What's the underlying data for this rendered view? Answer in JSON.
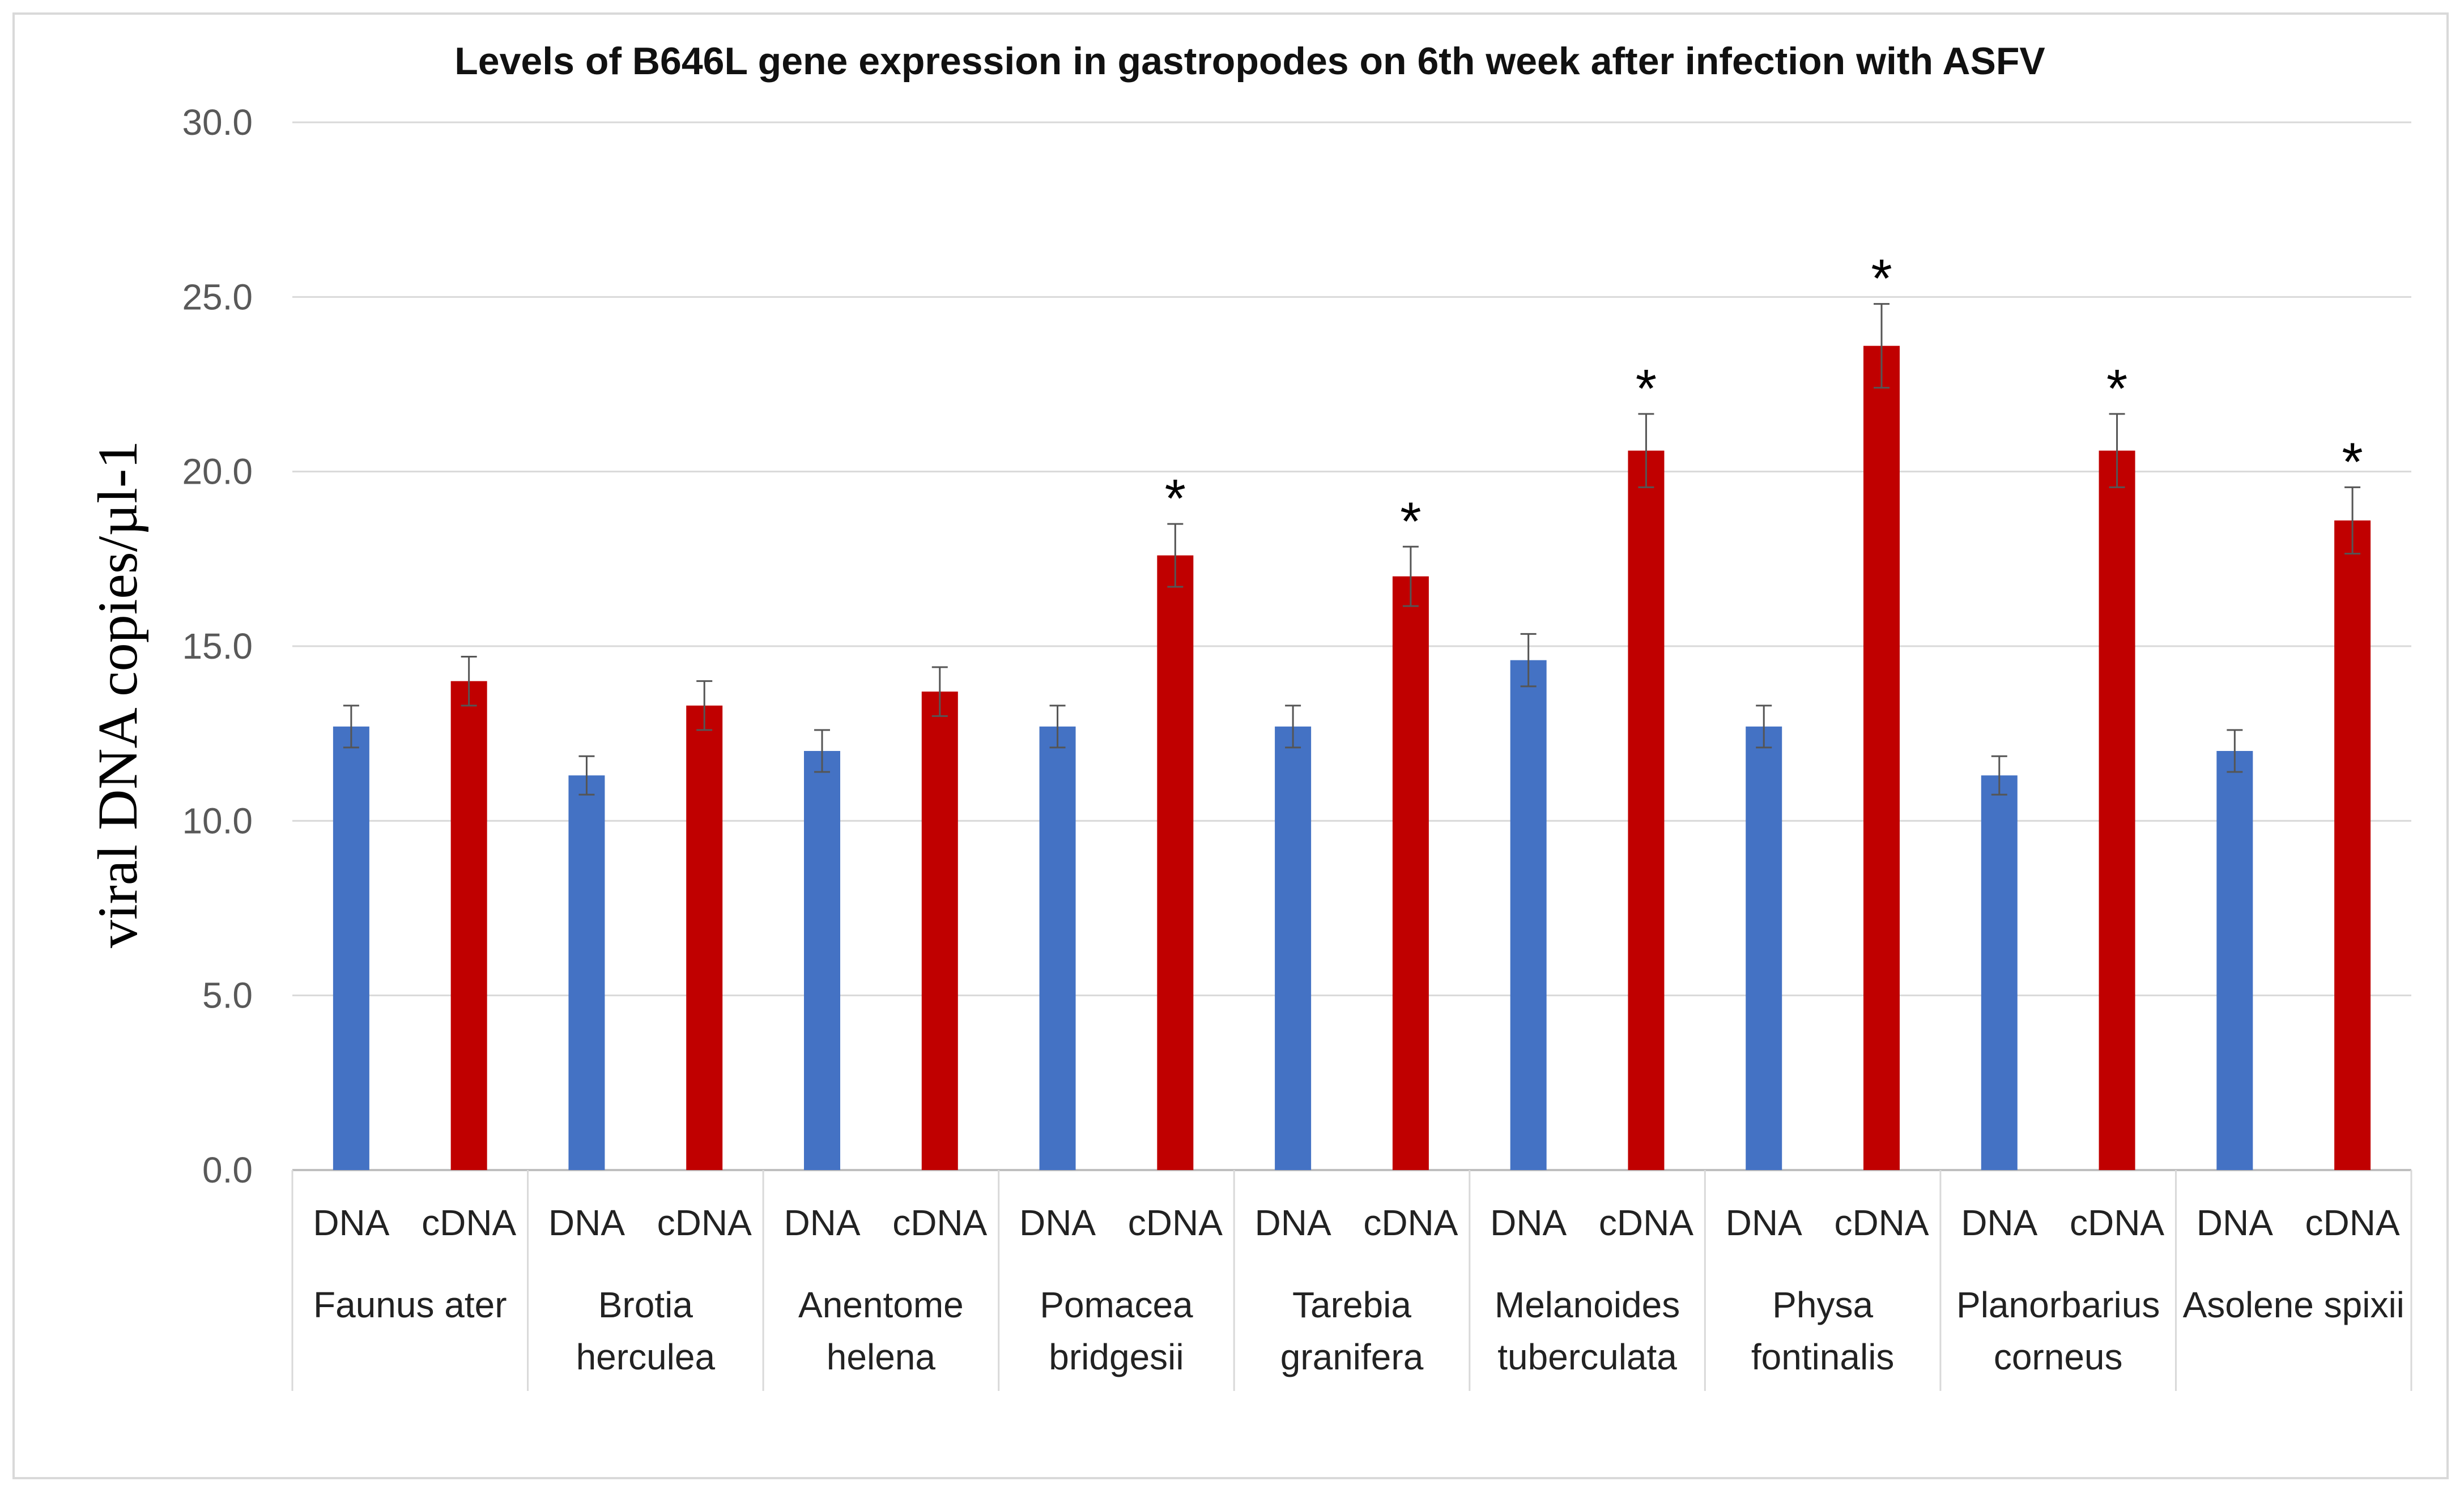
{
  "chart_data": {
    "type": "bar",
    "title": "Levels of B646L gene expression in gastropodes  on 6th week after infection with ASFV",
    "xlabel": "",
    "ylabel": "viral DNA copies/µl-1",
    "ylim": [
      0,
      30
    ],
    "yticks": [
      "0.0",
      "5.0",
      "10.0",
      "15.0",
      "20.0",
      "25.0",
      "30.0"
    ],
    "ytick_values": [
      0,
      5,
      10,
      15,
      20,
      25,
      30
    ],
    "grid": true,
    "significance_marker": "*",
    "series": [
      {
        "name": "DNA",
        "color": "#4472c4"
      },
      {
        "name": "cDNA",
        "color": "#c00000"
      }
    ],
    "groups": [
      {
        "name_lines": [
          "Faunus ater"
        ],
        "bars": [
          {
            "label": "DNA",
            "value": 12.7,
            "error": 0.6,
            "significant": false
          },
          {
            "label": "cDNA",
            "value": 14.0,
            "error": 0.7,
            "significant": false
          }
        ]
      },
      {
        "name_lines": [
          "Brotia",
          "herculea"
        ],
        "bars": [
          {
            "label": "DNA",
            "value": 11.3,
            "error": 0.55,
            "significant": false
          },
          {
            "label": "cDNA",
            "value": 13.3,
            "error": 0.7,
            "significant": false
          }
        ]
      },
      {
        "name_lines": [
          "Anentome",
          "helena"
        ],
        "bars": [
          {
            "label": "DNA",
            "value": 12.0,
            "error": 0.6,
            "significant": false
          },
          {
            "label": "cDNA",
            "value": 13.7,
            "error": 0.7,
            "significant": false
          }
        ]
      },
      {
        "name_lines": [
          "Pomacea",
          "bridgesii"
        ],
        "bars": [
          {
            "label": "DNA",
            "value": 12.7,
            "error": 0.6,
            "significant": false
          },
          {
            "label": "cDNA",
            "value": 17.6,
            "error": 0.9,
            "significant": true
          }
        ]
      },
      {
        "name_lines": [
          "Tarebia",
          "granifera"
        ],
        "bars": [
          {
            "label": "DNA",
            "value": 12.7,
            "error": 0.6,
            "significant": false
          },
          {
            "label": "cDNA",
            "value": 17.0,
            "error": 0.85,
            "significant": true
          }
        ]
      },
      {
        "name_lines": [
          "Melanoides",
          "tuberculata"
        ],
        "bars": [
          {
            "label": "DNA",
            "value": 14.6,
            "error": 0.75,
            "significant": false
          },
          {
            "label": "cDNA",
            "value": 20.6,
            "error": 1.05,
            "significant": true
          }
        ]
      },
      {
        "name_lines": [
          "Physa",
          "fontinalis"
        ],
        "bars": [
          {
            "label": "DNA",
            "value": 12.7,
            "error": 0.6,
            "significant": false
          },
          {
            "label": "cDNA",
            "value": 23.6,
            "error": 1.2,
            "significant": true
          }
        ]
      },
      {
        "name_lines": [
          "Planorbarius",
          "corneus"
        ],
        "bars": [
          {
            "label": "DNA",
            "value": 11.3,
            "error": 0.55,
            "significant": false
          },
          {
            "label": "cDNA",
            "value": 20.6,
            "error": 1.05,
            "significant": true
          }
        ]
      },
      {
        "name_lines": [
          "Asolene spixii"
        ],
        "bars": [
          {
            "label": "DNA",
            "value": 12.0,
            "error": 0.6,
            "significant": false
          },
          {
            "label": "cDNA",
            "value": 18.6,
            "error": 0.95,
            "significant": true
          }
        ]
      }
    ]
  }
}
